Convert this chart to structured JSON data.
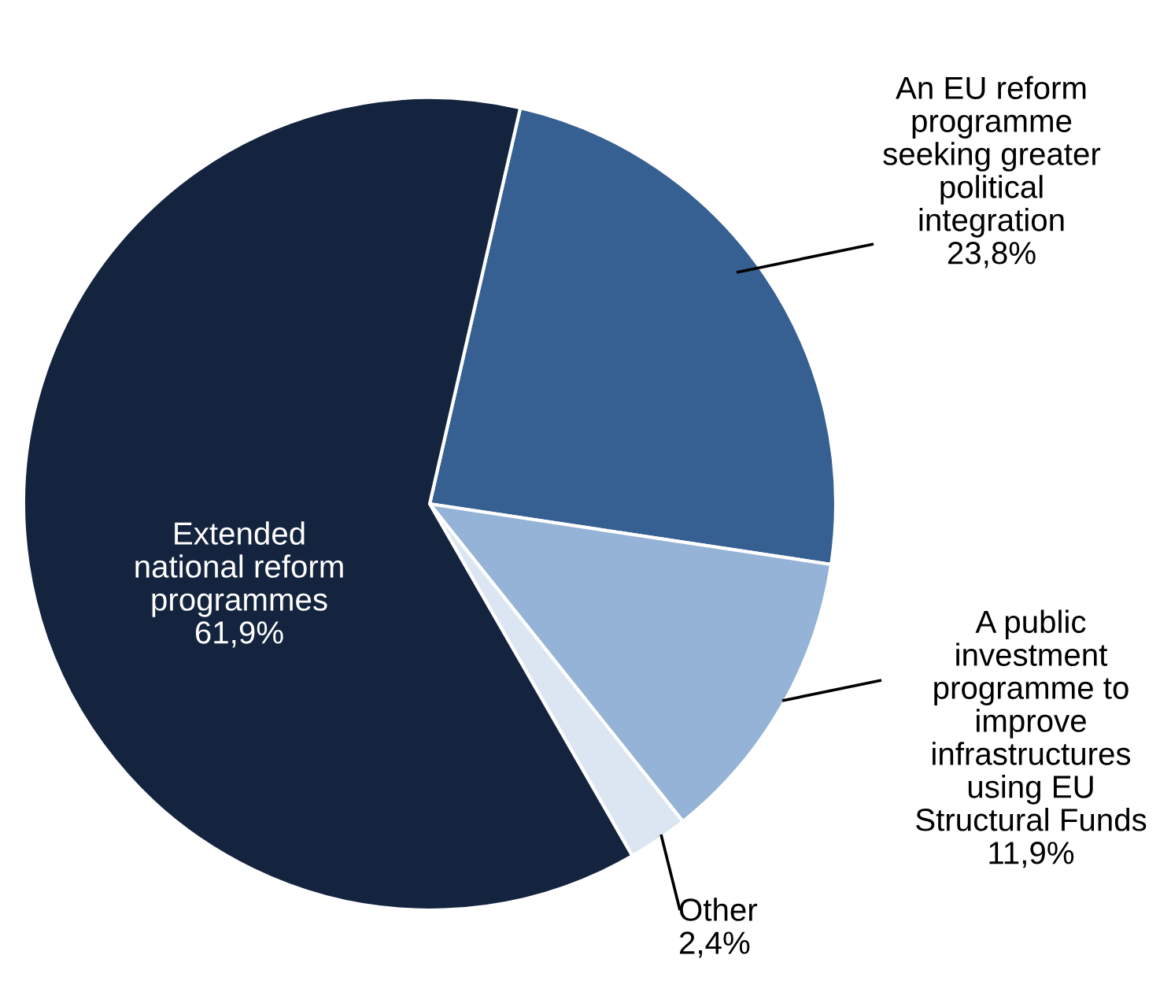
{
  "chart_data": {
    "type": "pie",
    "categories": [
      "An EU reform\nprogramme\nseeking greater\npolitical\nintegration",
      "A public\ninvestment\nprogramme to\nimprove\ninfrastructures\nusing EU\nStructural Funds",
      "Other",
      "Extended\nnational reform\nprogrammes"
    ],
    "values": [
      23.8,
      11.9,
      2.4,
      61.9
    ],
    "value_labels": [
      "23,8%",
      "11,9%",
      "2,4%",
      "61,9%"
    ],
    "colors": [
      "#376092",
      "#95b3d7",
      "#dce6f2",
      "#14243f"
    ]
  }
}
